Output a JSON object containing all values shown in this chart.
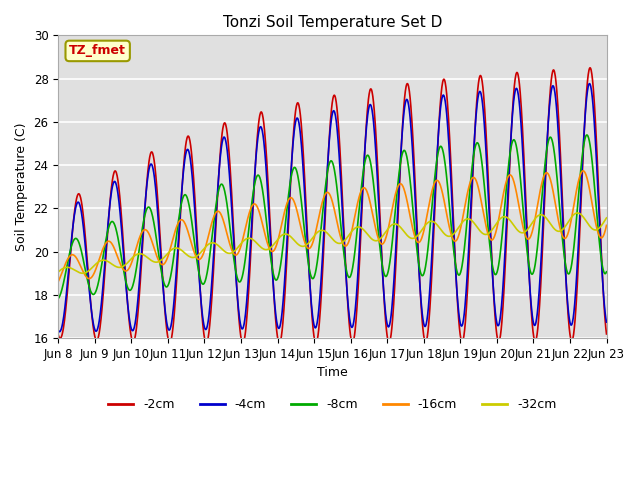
{
  "title": "Tonzi Soil Temperature Set D",
  "xlabel": "Time",
  "ylabel": "Soil Temperature (C)",
  "ylim": [
    16,
    30
  ],
  "annotation": "TZ_fmet",
  "legend_labels": [
    "-2cm",
    "-4cm",
    "-8cm",
    "-16cm",
    "-32cm"
  ],
  "line_colors": [
    "#cc0000",
    "#0000cc",
    "#00aa00",
    "#ff8800",
    "#cccc00"
  ],
  "background_color": "#e0e0e0",
  "tick_labels": [
    "Jun 8",
    "Jun 9",
    "Jun 10",
    "Jun 11",
    "Jun 12",
    "Jun 13",
    "Jun 14",
    "Jun 15",
    "Jun 16",
    "Jun 17",
    "Jun 18",
    "Jun 19",
    "Jun 20",
    "Jun 21",
    "Jun 22",
    "Jun 23"
  ],
  "grid_color": "white"
}
